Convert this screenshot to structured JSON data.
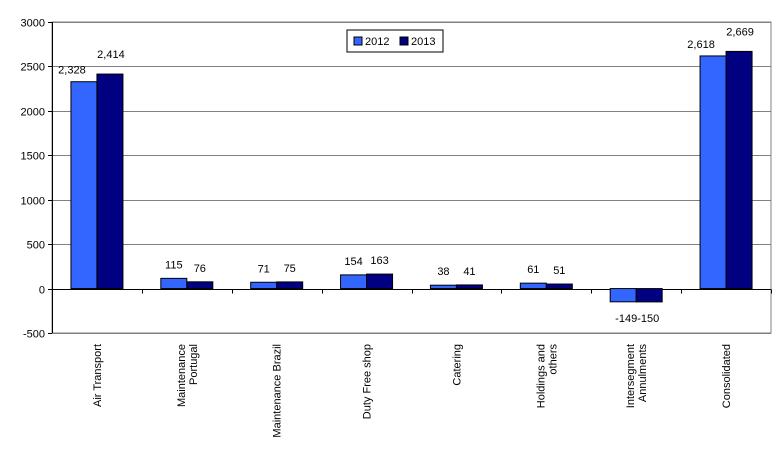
{
  "chart_data": {
    "type": "bar",
    "title": "",
    "xlabel": "",
    "ylabel": "",
    "categories": [
      [
        "Air Transport"
      ],
      [
        "Maintenance",
        "Portugal"
      ],
      [
        "Maintenance Brazil"
      ],
      [
        "Duty Free shop"
      ],
      [
        "Catering"
      ],
      [
        "Holdings and",
        "others"
      ],
      [
        "Intersegment",
        "Annulments"
      ],
      [
        "Consolidated"
      ]
    ],
    "series": [
      {
        "name": "2012",
        "color": "#3366ff",
        "values": [
          2328,
          115,
          71,
          154,
          38,
          61,
          -149,
          2618
        ],
        "labels": [
          "2,328",
          "115",
          "71",
          "154",
          "38",
          "61",
          "-149",
          "2,618"
        ]
      },
      {
        "name": "2013",
        "color": "#000080",
        "values": [
          2414,
          76,
          75,
          163,
          41,
          51,
          -150,
          2669
        ],
        "labels": [
          "2,414",
          "76",
          "75",
          "163",
          "41",
          "51",
          "-150",
          "2,669"
        ]
      }
    ],
    "ylim": [
      -500,
      3000
    ],
    "yticks": [
      -500,
      0,
      500,
      1000,
      1500,
      2000,
      2500,
      3000
    ],
    "grid": true,
    "legend": "top-center"
  }
}
